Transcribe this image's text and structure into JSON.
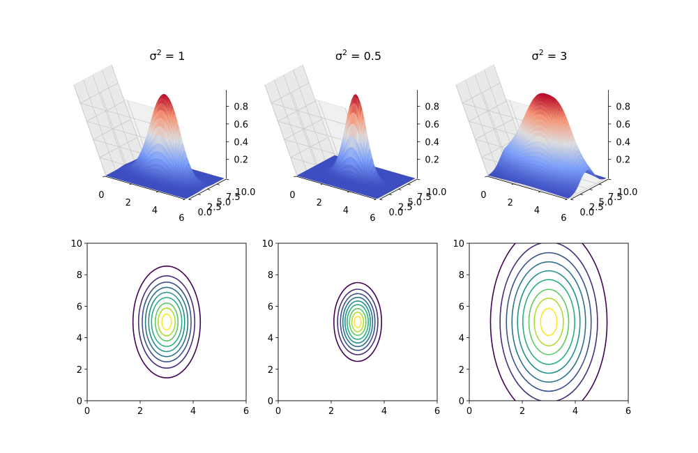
{
  "chart_data": [
    {
      "type": "surface3d",
      "title_symbol": "σ",
      "title_exp": "2",
      "title_rest": " = 1",
      "sigma2": 1,
      "center": [
        3,
        5
      ],
      "colormap": "coolwarm",
      "xticks": [
        "0",
        "2",
        "4",
        "6"
      ],
      "yticks": [
        "0.0",
        "2.5",
        "5.0",
        "7.5",
        "10.0"
      ],
      "zticks": [
        "0.2",
        "0.4",
        "0.6",
        "0.8"
      ]
    },
    {
      "type": "surface3d",
      "title_symbol": "σ",
      "title_exp": "2",
      "title_rest": " = 0.5",
      "sigma2": 0.5,
      "center": [
        3,
        5
      ],
      "colormap": "coolwarm",
      "xticks": [
        "0",
        "2",
        "4",
        "6"
      ],
      "yticks": [
        "0.0",
        "2.5",
        "5.0",
        "7.5",
        "10.0"
      ],
      "zticks": [
        "0.2",
        "0.4",
        "0.6",
        "0.8"
      ]
    },
    {
      "type": "surface3d",
      "title_symbol": "σ",
      "title_exp": "2",
      "title_rest": " = 3",
      "sigma2": 3,
      "center": [
        3,
        5
      ],
      "colormap": "coolwarm",
      "xticks": [
        "0",
        "2",
        "4",
        "6"
      ],
      "yticks": [
        "0.0",
        "2.5",
        "5.0",
        "7.5",
        "10.0"
      ],
      "zticks": [
        "0.2",
        "0.4",
        "0.6",
        "0.8"
      ]
    },
    {
      "type": "contour",
      "sigma2": 1,
      "center": [
        3,
        5
      ],
      "xlim": [
        0,
        6
      ],
      "ylim": [
        0,
        10
      ],
      "xticks": [
        "0",
        "2",
        "4",
        "6"
      ],
      "yticks": [
        "0",
        "2",
        "4",
        "6",
        "8",
        "10"
      ],
      "levels": [
        {
          "x_half": 1.27,
          "y_half": 3.55,
          "color": "#440154"
        },
        {
          "x_half": 1.06,
          "y_half": 2.93,
          "color": "#472d7b"
        },
        {
          "x_half": 0.92,
          "y_half": 2.53,
          "color": "#3b528b"
        },
        {
          "x_half": 0.8,
          "y_half": 2.2,
          "color": "#2c728e"
        },
        {
          "x_half": 0.68,
          "y_half": 1.88,
          "color": "#21918c"
        },
        {
          "x_half": 0.57,
          "y_half": 1.55,
          "color": "#28ae80"
        },
        {
          "x_half": 0.43,
          "y_half": 1.2,
          "color": "#5ec962"
        },
        {
          "x_half": 0.32,
          "y_half": 0.88,
          "color": "#addc30"
        },
        {
          "x_half": 0.18,
          "y_half": 0.5,
          "color": "#fde725"
        }
      ]
    },
    {
      "type": "contour",
      "sigma2": 0.5,
      "center": [
        3,
        5
      ],
      "xlim": [
        0,
        6
      ],
      "ylim": [
        0,
        10
      ],
      "xticks": [
        "0",
        "2",
        "4",
        "6"
      ],
      "yticks": [
        "0",
        "2",
        "4",
        "6",
        "8",
        "10"
      ],
      "levels": [
        {
          "x_half": 0.9,
          "y_half": 2.5,
          "color": "#440154"
        },
        {
          "x_half": 0.76,
          "y_half": 2.08,
          "color": "#472d7b"
        },
        {
          "x_half": 0.65,
          "y_half": 1.8,
          "color": "#3b528b"
        },
        {
          "x_half": 0.56,
          "y_half": 1.56,
          "color": "#2c728e"
        },
        {
          "x_half": 0.48,
          "y_half": 1.33,
          "color": "#21918c"
        },
        {
          "x_half": 0.4,
          "y_half": 1.1,
          "color": "#28ae80"
        },
        {
          "x_half": 0.31,
          "y_half": 0.85,
          "color": "#5ec962"
        },
        {
          "x_half": 0.22,
          "y_half": 0.62,
          "color": "#addc30"
        },
        {
          "x_half": 0.13,
          "y_half": 0.36,
          "color": "#fde725"
        }
      ]
    },
    {
      "type": "contour",
      "sigma2": 3,
      "center": [
        3,
        5
      ],
      "xlim": [
        0,
        6
      ],
      "ylim": [
        0,
        10
      ],
      "xticks": [
        "0",
        "2",
        "4",
        "6"
      ],
      "yticks": [
        "0",
        "2",
        "4",
        "6",
        "8",
        "10"
      ],
      "levels": [
        {
          "x_half": 2.2,
          "y_half": 6.1,
          "color": "#440154"
        },
        {
          "x_half": 1.84,
          "y_half": 5.07,
          "color": "#472d7b"
        },
        {
          "x_half": 1.6,
          "y_half": 4.4,
          "color": "#3b528b"
        },
        {
          "x_half": 1.39,
          "y_half": 3.82,
          "color": "#2c728e"
        },
        {
          "x_half": 1.18,
          "y_half": 3.25,
          "color": "#21918c"
        },
        {
          "x_half": 0.98,
          "y_half": 2.69,
          "color": "#28ae80"
        },
        {
          "x_half": 0.75,
          "y_half": 2.07,
          "color": "#5ec962"
        },
        {
          "x_half": 0.55,
          "y_half": 1.51,
          "color": "#addc30"
        },
        {
          "x_half": 0.31,
          "y_half": 0.86,
          "color": "#fde725"
        }
      ]
    }
  ]
}
